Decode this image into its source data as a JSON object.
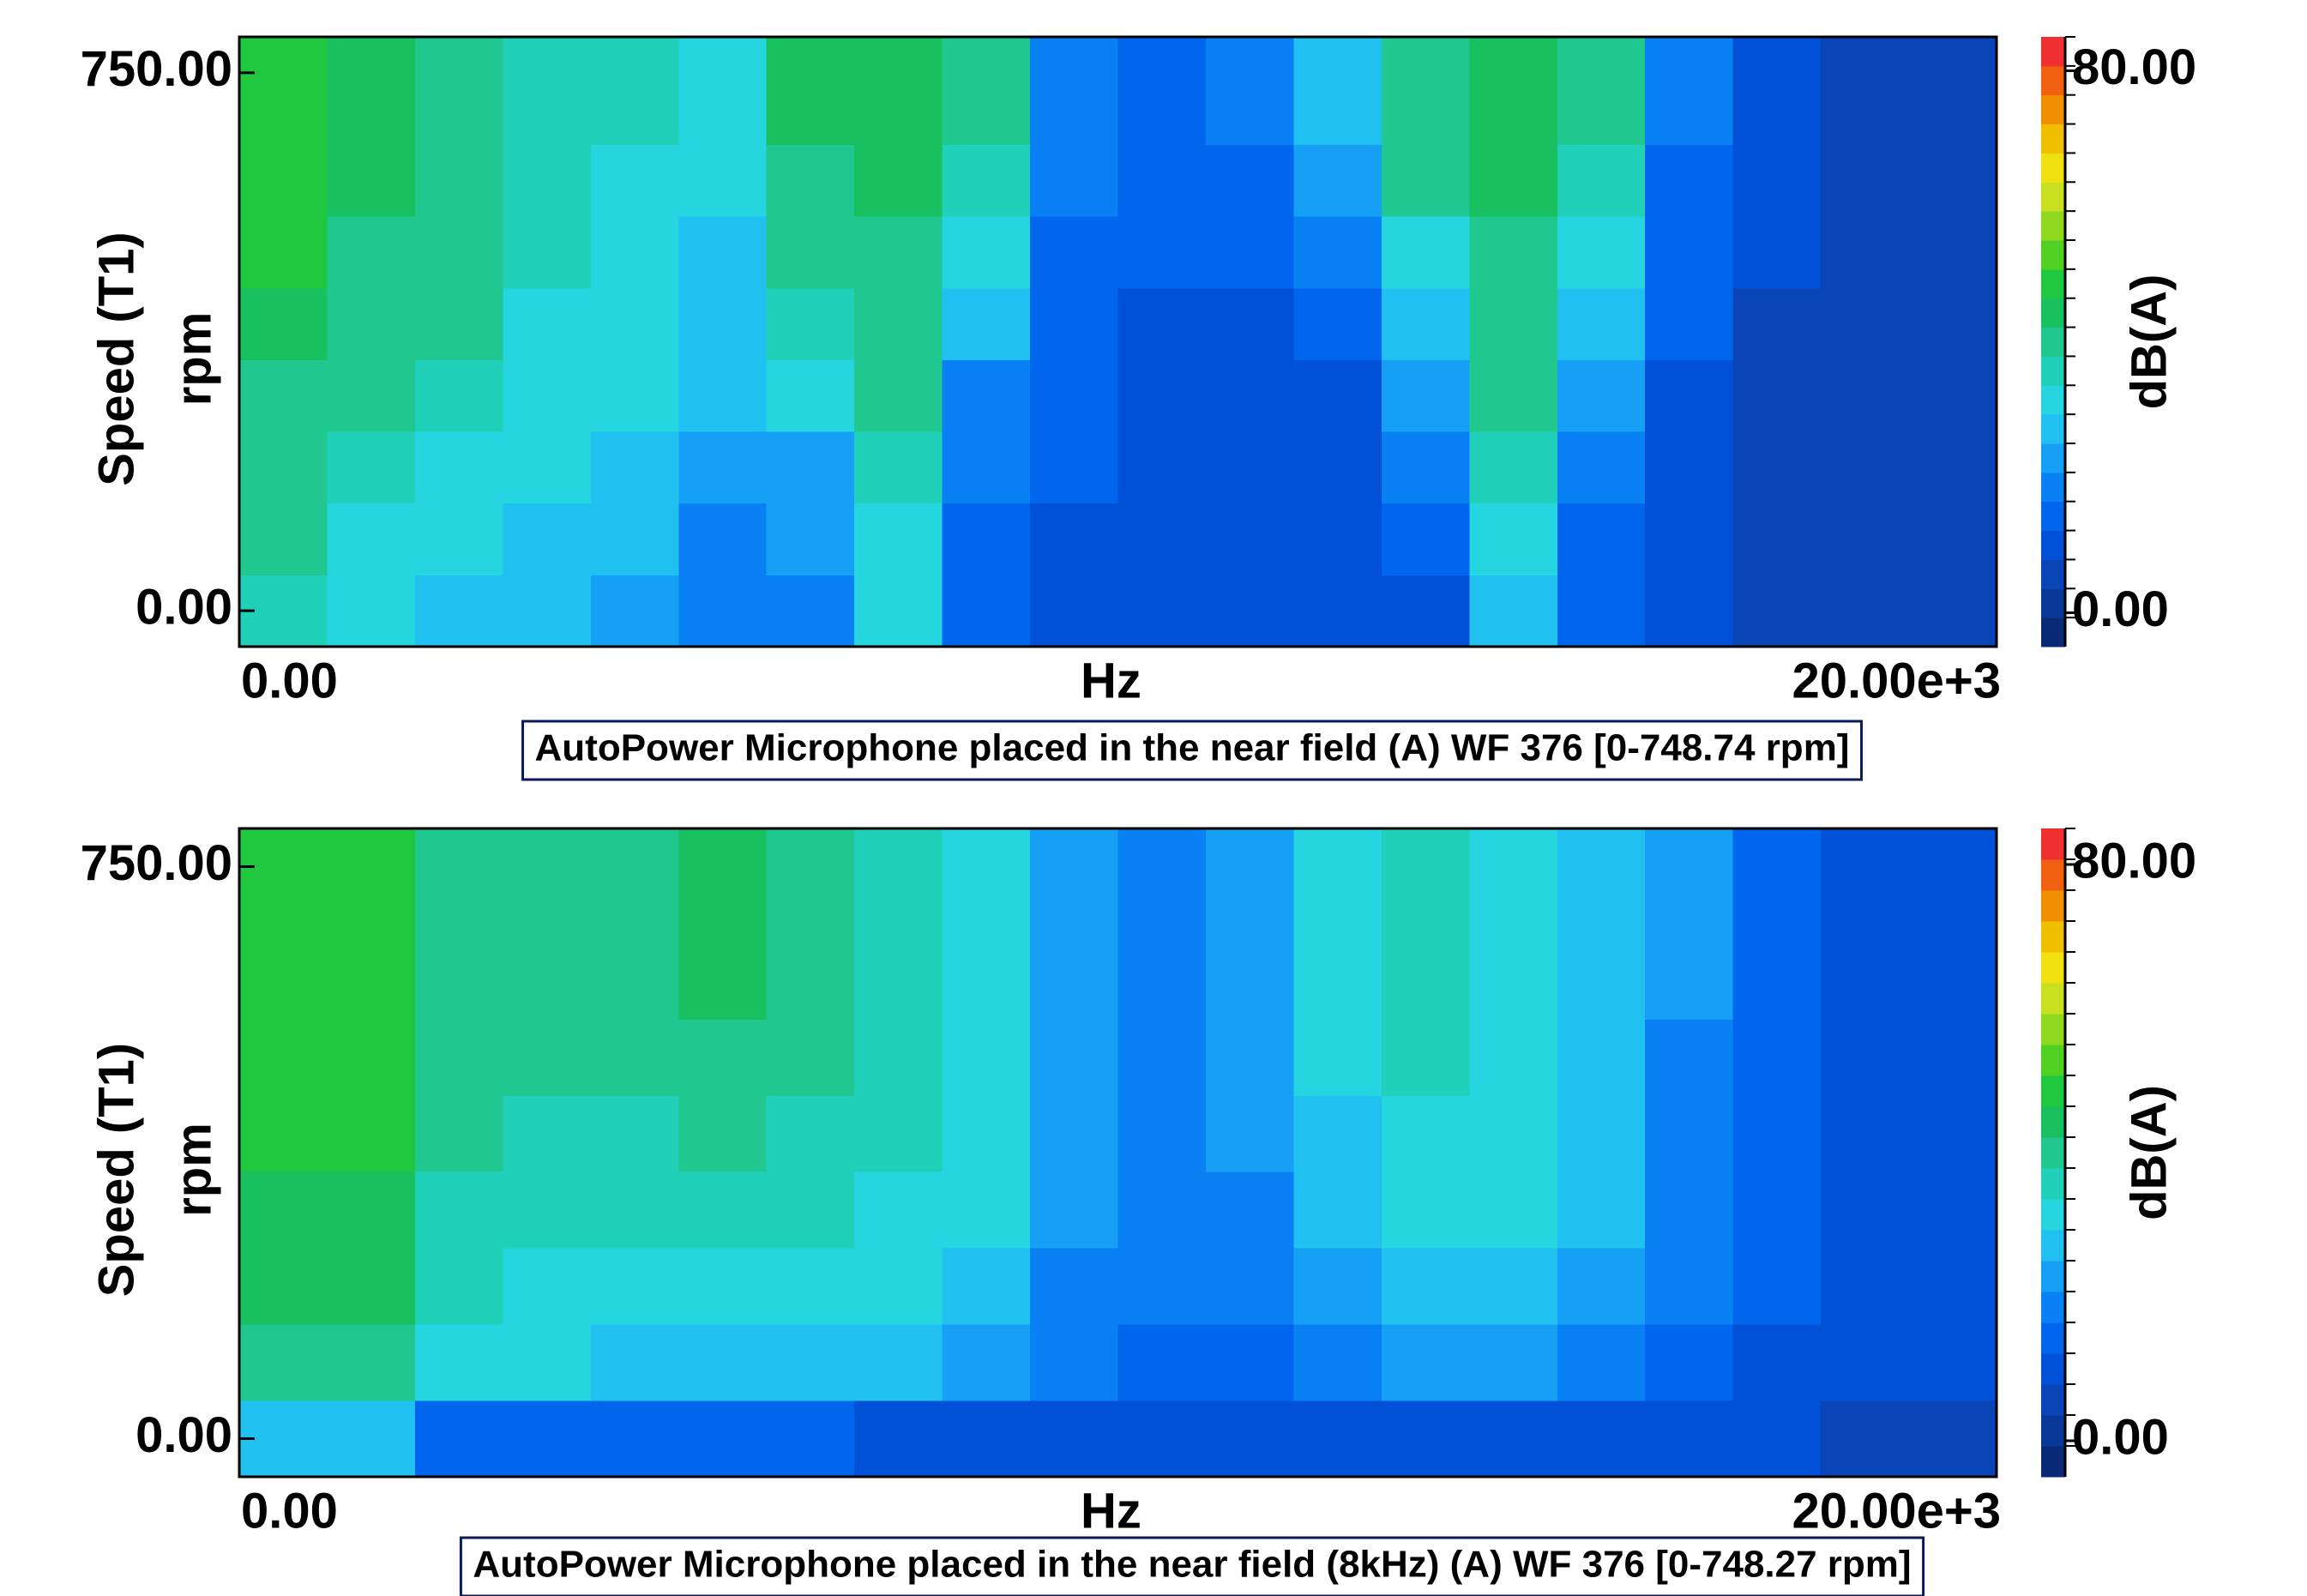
{
  "chart_data": [
    {
      "type": "heatmap",
      "title": "AutoPower Microphone placed in the near field (A) WF 376 [0-748.74 rpm]",
      "xlabel": "Hz",
      "ylabel": [
        "Speed (T1)",
        "rpm"
      ],
      "zlabel": "dB(A)",
      "xlim": [
        0,
        20000
      ],
      "xticks": [
        {
          "value": 0,
          "label": "0.00"
        },
        {
          "value": 20000,
          "label": "20.00e+3"
        }
      ],
      "ylim": [
        -50,
        800
      ],
      "yticks": [
        {
          "value": 0,
          "label": "0.00"
        },
        {
          "value": 750,
          "label": "750.00"
        }
      ],
      "zlim": [
        -5,
        85
      ],
      "zticks": [
        {
          "value": 0,
          "label": "0.00"
        },
        {
          "value": 80,
          "label": "80.00"
        }
      ],
      "colors": [
        "#0a2a78",
        "#0a3898",
        "#0a45b8",
        "#0050d8",
        "#0066ee",
        "#0a80f5",
        "#15a0f5",
        "#20c0f0",
        "#25d5e0",
        "#20d0b8",
        "#20c890",
        "#18c060",
        "#20c840",
        "#50d020",
        "#90d820",
        "#c8e020",
        "#f0e010",
        "#f0c000",
        "#f09000",
        "#f06010",
        "#f03030"
      ],
      "xbins": [
        0,
        1000,
        2000,
        3000,
        4000,
        5000,
        6000,
        7000,
        8000,
        9000,
        10000,
        11000,
        12000,
        13000,
        14000,
        15000,
        16000,
        17000,
        18000,
        19000,
        20000
      ],
      "ybins": [
        -50,
        50,
        150,
        250,
        350,
        450,
        550,
        650,
        800
      ],
      "z": [
        [
          35,
          30,
          28,
          25,
          22,
          18,
          20,
          30,
          15,
          12,
          12,
          10,
          10,
          12,
          28,
          15,
          8,
          5,
          5,
          5
        ],
        [
          38,
          33,
          30,
          28,
          25,
          20,
          22,
          32,
          15,
          12,
          12,
          10,
          10,
          15,
          30,
          15,
          8,
          5,
          5,
          5
        ],
        [
          40,
          35,
          32,
          30,
          28,
          22,
          24,
          35,
          18,
          14,
          12,
          10,
          10,
          18,
          35,
          18,
          10,
          6,
          5,
          5
        ],
        [
          42,
          38,
          35,
          32,
          30,
          25,
          30,
          38,
          20,
          14,
          12,
          12,
          12,
          22,
          38,
          22,
          12,
          6,
          5,
          5
        ],
        [
          45,
          40,
          38,
          33,
          30,
          25,
          35,
          40,
          25,
          15,
          12,
          12,
          14,
          28,
          40,
          28,
          14,
          7,
          5,
          5
        ],
        [
          47,
          42,
          40,
          35,
          32,
          28,
          40,
          42,
          30,
          16,
          14,
          14,
          18,
          32,
          42,
          32,
          15,
          8,
          5,
          5
        ],
        [
          48,
          44,
          42,
          35,
          33,
          30,
          42,
          44,
          35,
          18,
          14,
          16,
          22,
          38,
          44,
          35,
          16,
          8,
          5,
          5
        ],
        [
          50,
          45,
          42,
          36,
          34,
          32,
          44,
          45,
          38,
          20,
          15,
          18,
          25,
          40,
          45,
          38,
          18,
          8,
          5,
          5
        ]
      ]
    },
    {
      "type": "heatmap",
      "title": "AutoPower Microphone placed in the near field (8kHz) (A) WF 376 [0-748.27 rpm]",
      "xlabel": "Hz",
      "ylabel": [
        "Speed (T1)",
        "rpm"
      ],
      "zlabel": "dB(A)",
      "xlim": [
        0,
        20000
      ],
      "xticks": [
        {
          "value": 0,
          "label": "0.00"
        },
        {
          "value": 20000,
          "label": "20.00e+3"
        }
      ],
      "ylim": [
        -50,
        800
      ],
      "yticks": [
        {
          "value": 0,
          "label": "0.00"
        },
        {
          "value": 750,
          "label": "750.00"
        }
      ],
      "zlim": [
        -5,
        85
      ],
      "zticks": [
        {
          "value": 0,
          "label": "0.00"
        },
        {
          "value": 80,
          "label": "80.00"
        }
      ],
      "colors": [
        "#0a2a78",
        "#0a3898",
        "#0a45b8",
        "#0050d8",
        "#0066ee",
        "#0a80f5",
        "#15a0f5",
        "#20c0f0",
        "#25d5e0",
        "#20d0b8",
        "#20c890",
        "#18c060",
        "#20c840",
        "#50d020",
        "#90d820",
        "#c8e020",
        "#f0e010",
        "#f0c000",
        "#f09000",
        "#f06010",
        "#f03030"
      ],
      "xbins": [
        0,
        1000,
        2000,
        3000,
        4000,
        5000,
        6000,
        7000,
        8000,
        9000,
        10000,
        11000,
        12000,
        13000,
        14000,
        15000,
        16000,
        17000,
        18000,
        19000,
        20000
      ],
      "ybins": [
        -50,
        50,
        150,
        250,
        350,
        450,
        550,
        650,
        800
      ],
      "z": [
        [
          28,
          25,
          15,
          15,
          15,
          15,
          15,
          12,
          12,
          10,
          10,
          10,
          10,
          12,
          12,
          12,
          10,
          8,
          6,
          6
        ],
        [
          42,
          42,
          32,
          30,
          28,
          28,
          28,
          26,
          24,
          18,
          16,
          16,
          20,
          22,
          22,
          20,
          16,
          12,
          8,
          8
        ],
        [
          44,
          44,
          34,
          32,
          32,
          32,
          32,
          30,
          28,
          20,
          18,
          18,
          24,
          28,
          28,
          24,
          18,
          14,
          10,
          8
        ],
        [
          46,
          46,
          36,
          34,
          34,
          35,
          34,
          32,
          30,
          22,
          18,
          20,
          26,
          30,
          30,
          26,
          20,
          14,
          10,
          8
        ],
        [
          48,
          47,
          38,
          36,
          36,
          38,
          36,
          34,
          30,
          22,
          20,
          22,
          28,
          32,
          32,
          28,
          20,
          15,
          10,
          8
        ],
        [
          50,
          48,
          40,
          38,
          38,
          42,
          38,
          34,
          30,
          22,
          20,
          22,
          30,
          34,
          32,
          28,
          20,
          15,
          10,
          8
        ],
        [
          50,
          48,
          42,
          38,
          40,
          44,
          40,
          34,
          30,
          22,
          20,
          24,
          30,
          34,
          32,
          28,
          22,
          16,
          10,
          8
        ],
        [
          50,
          48,
          42,
          40,
          40,
          45,
          42,
          34,
          30,
          22,
          20,
          24,
          30,
          34,
          32,
          28,
          22,
          16,
          10,
          8
        ]
      ]
    }
  ]
}
